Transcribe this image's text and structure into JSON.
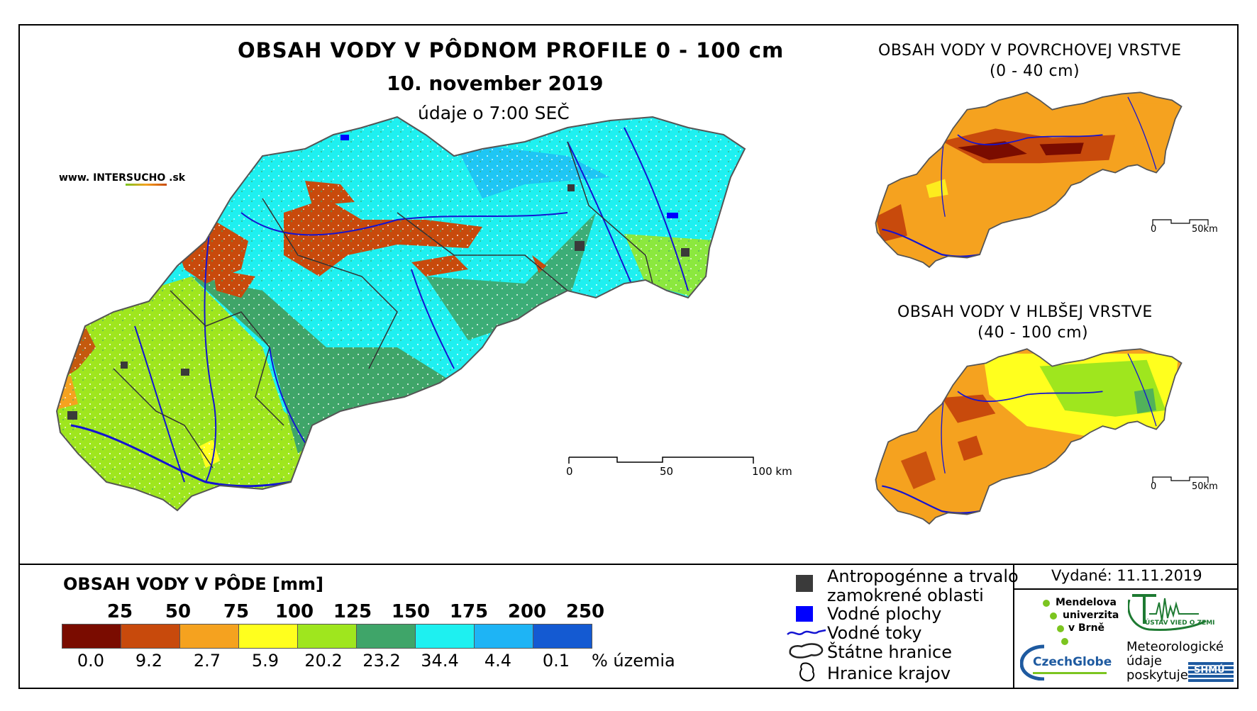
{
  "main_map": {
    "title": "OBSAH VODY V PÔDNOM PROFILE 0 - 100 cm",
    "date": "10. november 2019",
    "time_note": "údaje o 7:00 SEČ",
    "website": "www. INTERSUCHO .sk",
    "scale_labels": [
      "0",
      "50",
      "100 km"
    ]
  },
  "inset_top": {
    "title_line1": "OBSAH VODY V POVRCHOVEJ VRSTVE",
    "title_line2": "(0 - 40 cm)",
    "scale_labels": [
      "0",
      "50km"
    ]
  },
  "inset_bottom": {
    "title_line1": "OBSAH VODY V HLBŠEJ VRSTVE",
    "title_line2": "(40 - 100 cm)",
    "scale_labels": [
      "0",
      "50km"
    ]
  },
  "legend": {
    "title": "OBSAH VODY V PÔDE [mm]",
    "thresholds": [
      "25",
      "50",
      "75",
      "100",
      "125",
      "150",
      "175",
      "200",
      "250"
    ],
    "classes": [
      {
        "color": "#7a0c00",
        "percent": "0.0"
      },
      {
        "color": "#c84a0c",
        "percent": "9.2"
      },
      {
        "color": "#f5a21f",
        "percent": "2.7"
      },
      {
        "color": "#ffff1e",
        "percent": "5.9"
      },
      {
        "color": "#9fe61e",
        "percent": "20.2"
      },
      {
        "color": "#3fa569",
        "percent": "23.2"
      },
      {
        "color": "#1ef0f0",
        "percent": "34.4"
      },
      {
        "color": "#1eb4f5",
        "percent": "4.4"
      },
      {
        "color": "#145ad2",
        "percent": "0.1"
      }
    ],
    "unit": "% územia"
  },
  "symbols": {
    "anthropogenic_line1": "Antropogénne a trvalo",
    "anthropogenic_line2": "zamokrené oblasti",
    "water_bodies": "Vodné plochy",
    "water_courses": "Vodné toky",
    "state_border": "Štátne hranice",
    "region_border": "Hranice krajov",
    "colors": {
      "anthropogenic": "#3a3a3a",
      "water_body": "#0000ff",
      "water_course": "#1414d2"
    }
  },
  "issued": {
    "label": "Vydané: 11.11.2019"
  },
  "logos": {
    "mendel_line1": "Mendelova",
    "mendel_line2": "univerzita",
    "mendel_line3": "v Brně",
    "czechglobe": "CzechGlobe",
    "ustav": "ÚSTAV VIED O ZEMI",
    "meteo_line1": "Meteorologické",
    "meteo_line2": "údaje",
    "meteo_line3": "poskytuje:",
    "shmu": "SHMÚ"
  },
  "colors": {
    "mendel_green": "#7cc520",
    "czechglobe_blue": "#1e5aa0",
    "ustav_green": "#1e7a32"
  }
}
